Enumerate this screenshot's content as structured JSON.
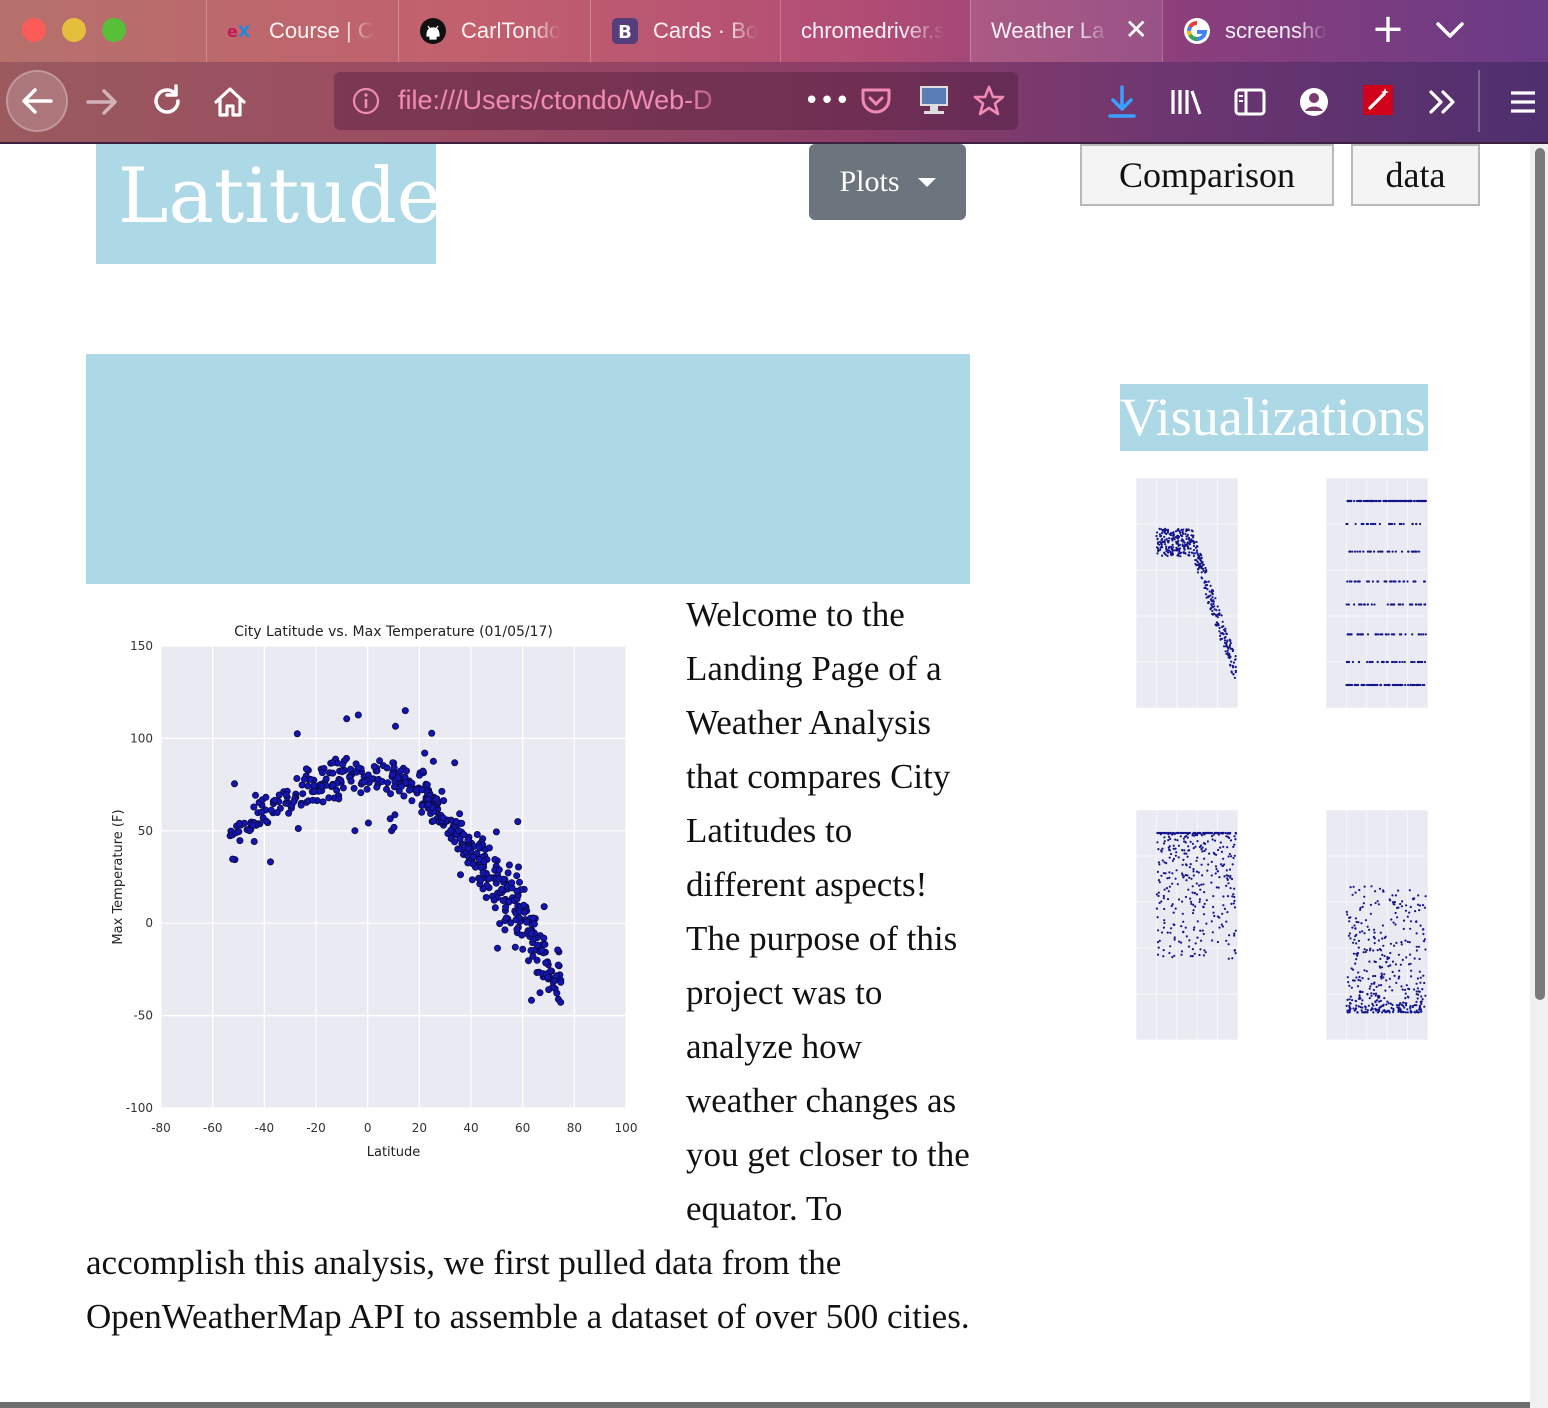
{
  "browser": {
    "tabs": [
      {
        "label": "Course | C",
        "icon": "edx-icon"
      },
      {
        "label": "CarlTondo",
        "icon": "github-icon"
      },
      {
        "label": "Cards · Bo",
        "icon": "bootstrap-icon"
      },
      {
        "label": "chromedriver.s",
        "icon": "none"
      },
      {
        "label": "Weather La",
        "icon": "none",
        "active": true
      },
      {
        "label": "screensho",
        "icon": "google-icon"
      }
    ],
    "url": "file:///Users/ctondo/Web-D",
    "accent_color": "#f28bb4"
  },
  "page": {
    "brand": "Latitude",
    "plots_dropdown": "Plots",
    "nav_links": [
      "Comparison",
      "data"
    ],
    "intro_text": "Welcome to the Landing Page of a Weather Analysis that compares City Latitudes to different aspects! The purpose of this project was to analyze how weather changes as you get closer to the equator. To accomplish this analysis, we first pulled data from the OpenWeatherMap API to assemble a dataset of over 500 cities.",
    "visualizations_title": "Visualizations",
    "highlight_color": "#add8e6"
  },
  "chart_data": [
    {
      "type": "scatter",
      "title": "City Latitude vs. Max Temperature (01/05/17)",
      "xlabel": "Latitude",
      "ylabel": "Max Temperature (F)",
      "xlim": [
        -80,
        100
      ],
      "ylim": [
        -100,
        150
      ],
      "xticks": [
        "-80",
        "-60",
        "-40",
        "-20",
        "0",
        "20",
        "40",
        "60",
        "80",
        "100"
      ],
      "yticks": [
        "150",
        "100",
        "50",
        "0",
        "-50",
        "-100"
      ],
      "grid": true,
      "point_color": "#1414b4",
      "trend": [
        [
          -55,
          40
        ],
        [
          -40,
          62
        ],
        [
          -25,
          72
        ],
        [
          -10,
          80
        ],
        [
          0,
          80
        ],
        [
          10,
          80
        ],
        [
          20,
          72
        ],
        [
          30,
          58
        ],
        [
          40,
          40
        ],
        [
          50,
          22
        ],
        [
          60,
          5
        ],
        [
          70,
          -25
        ]
      ]
    }
  ],
  "thumbnails": [
    {
      "name": "thumb-max-temperature",
      "pattern": "temperature"
    },
    {
      "name": "thumb-cloudiness",
      "pattern": "cloudiness"
    },
    {
      "name": "thumb-humidity",
      "pattern": "humidity"
    },
    {
      "name": "thumb-wind-speed",
      "pattern": "wind"
    }
  ]
}
